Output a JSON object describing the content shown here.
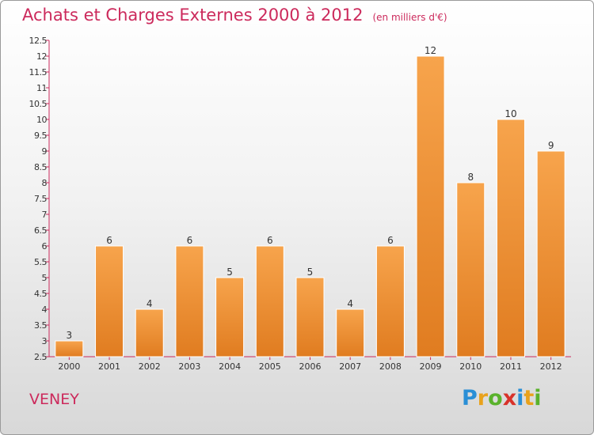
{
  "title": "Achats et Charges Externes 2000 à 2012",
  "subtitle": "(en milliers d'€)",
  "commune": "VENEY",
  "logo": {
    "text": "Proxiti",
    "letters": [
      "P",
      "r",
      "o",
      "x",
      "i",
      "t",
      "i"
    ]
  },
  "colors": {
    "bar_top": "#f7a44c",
    "bar_bottom": "#e07c20",
    "title": "#cc2a5c",
    "axis": "#cc2a5c"
  },
  "chart_data": {
    "type": "bar",
    "title": "Achats et Charges Externes 2000 à 2012",
    "subtitle": "(en milliers d'€)",
    "xlabel": "",
    "ylabel": "",
    "categories": [
      "2000",
      "2001",
      "2002",
      "2003",
      "2004",
      "2005",
      "2006",
      "2007",
      "2008",
      "2009",
      "2010",
      "2011",
      "2012"
    ],
    "values": [
      3,
      6,
      4,
      6,
      5,
      6,
      5,
      4,
      6,
      12,
      8,
      10,
      9
    ],
    "data_labels": [
      "3",
      "6",
      "4",
      "6",
      "5",
      "6",
      "5",
      "4",
      "6",
      "12",
      "8",
      "10",
      "9"
    ],
    "ylim": [
      2.5,
      12.5
    ],
    "yticks": [
      "2.5",
      "3",
      "3.5",
      "4",
      "4.5",
      "5",
      "5.5",
      "6",
      "6.5",
      "7",
      "7.5",
      "8",
      "8.5",
      "9",
      "9.5",
      "10",
      "10.5",
      "11",
      "11.5",
      "12",
      "12.5"
    ],
    "grid": false,
    "legend": "none"
  }
}
